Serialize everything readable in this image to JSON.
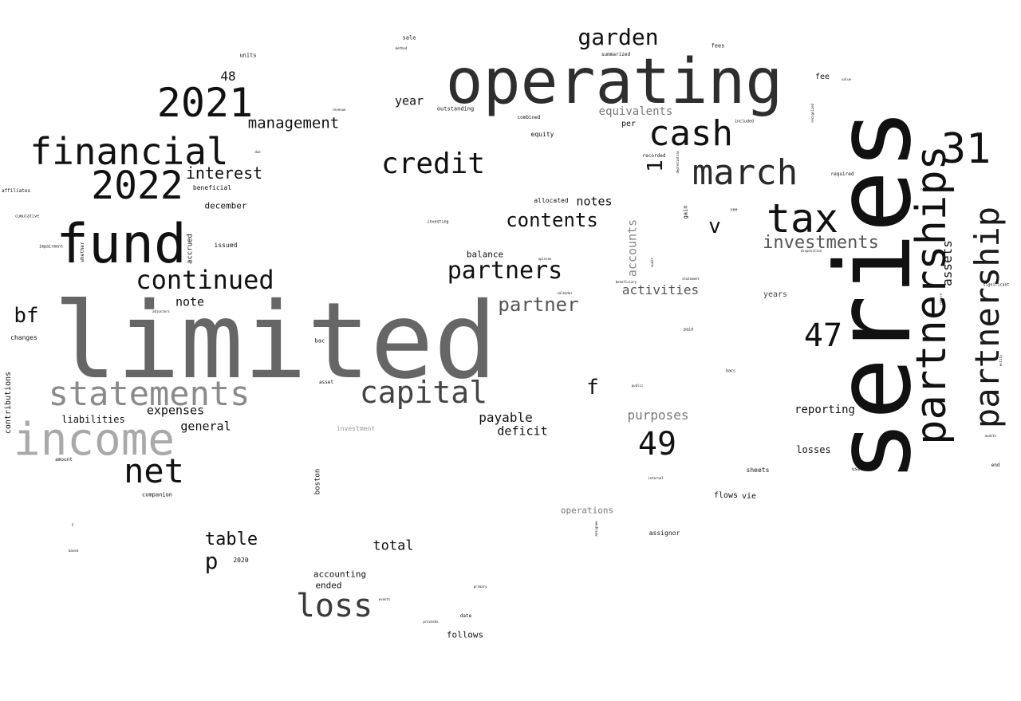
{
  "words": [
    {
      "text": "series",
      "color": "#111111",
      "rotated": true
    },
    {
      "text": "limited",
      "color": "#666666",
      "rotated": false
    },
    {
      "text": "operating",
      "color": "#2e2e2e",
      "rotated": false
    },
    {
      "text": "partnerships",
      "color": "#111111",
      "rotated": true
    },
    {
      "text": "income",
      "color": "#a9a9a9",
      "rotated": false
    },
    {
      "text": "fund",
      "color": "#111111",
      "rotated": false
    },
    {
      "text": "partnership",
      "color": "#1a1a1a",
      "rotated": true
    },
    {
      "text": "financial",
      "color": "#111111",
      "rotated": false
    },
    {
      "text": "statements",
      "color": "#8a8a8a",
      "rotated": false
    },
    {
      "text": "tax",
      "color": "#111111",
      "rotated": false
    },
    {
      "text": "2021",
      "color": "#111111",
      "rotated": false
    },
    {
      "text": "2022",
      "color": "#111111",
      "rotated": false
    },
    {
      "text": "march",
      "color": "#2a2a2a",
      "rotated": false
    },
    {
      "text": "cash",
      "color": "#111111",
      "rotated": false
    },
    {
      "text": "31",
      "color": "#111111",
      "rotated": false
    },
    {
      "text": "capital",
      "color": "#444444",
      "rotated": false
    },
    {
      "text": "net",
      "color": "#111111",
      "rotated": false
    },
    {
      "text": "loss",
      "color": "#3a3a3a",
      "rotated": false
    },
    {
      "text": "credit",
      "color": "#111111",
      "rotated": false
    },
    {
      "text": "49",
      "color": "#111111",
      "rotated": false
    },
    {
      "text": "47",
      "color": "#111111",
      "rotated": false
    },
    {
      "text": "continued",
      "color": "#111111",
      "rotated": false
    },
    {
      "text": "partners",
      "color": "#111111",
      "rotated": false
    },
    {
      "text": "garden",
      "color": "#111111",
      "rotated": false
    },
    {
      "text": "contents",
      "color": "#111111",
      "rotated": false
    },
    {
      "text": "investments",
      "color": "#555555",
      "rotated": false
    },
    {
      "text": "partner",
      "color": "#555555",
      "rotated": false
    },
    {
      "text": "interest",
      "color": "#111111",
      "rotated": false
    },
    {
      "text": "management",
      "color": "#111111",
      "rotated": false
    },
    {
      "text": "table",
      "color": "#111111",
      "rotated": false
    },
    {
      "text": "bf",
      "color": "#111111",
      "rotated": false
    },
    {
      "text": "p",
      "color": "#111111",
      "rotated": false
    },
    {
      "text": "v",
      "color": "#111111",
      "rotated": false
    },
    {
      "text": "f",
      "color": "#111111",
      "rotated": false
    },
    {
      "text": "1",
      "color": "#111111",
      "rotated": true
    },
    {
      "text": "total",
      "color": "#111111",
      "rotated": false
    },
    {
      "text": "assets",
      "color": "#111111",
      "rotated": true
    },
    {
      "text": "purposes",
      "color": "#777777",
      "rotated": false
    },
    {
      "text": "activities",
      "color": "#555555",
      "rotated": false
    },
    {
      "text": "accounts",
      "color": "#888888",
      "rotated": true
    },
    {
      "text": "payable",
      "color": "#111111",
      "rotated": false
    },
    {
      "text": "deficit",
      "color": "#111111",
      "rotated": false
    },
    {
      "text": "expenses",
      "color": "#111111",
      "rotated": false
    },
    {
      "text": "general",
      "color": "#111111",
      "rotated": false
    },
    {
      "text": "note",
      "color": "#111111",
      "rotated": false
    },
    {
      "text": "48",
      "color": "#111111",
      "rotated": false
    },
    {
      "text": "year",
      "color": "#111111",
      "rotated": false
    },
    {
      "text": "notes",
      "color": "#111111",
      "rotated": false
    },
    {
      "text": "reporting",
      "color": "#111111",
      "rotated": false
    },
    {
      "text": "equivalents",
      "color": "#777777",
      "rotated": false
    },
    {
      "text": "liabilities",
      "color": "#111111",
      "rotated": false
    },
    {
      "text": "operations",
      "color": "#777777",
      "rotated": false
    },
    {
      "text": "losses",
      "color": "#111111",
      "rotated": false
    },
    {
      "text": "balance",
      "color": "#111111",
      "rotated": false
    },
    {
      "text": "follows",
      "color": "#111111",
      "rotated": false
    },
    {
      "text": "accounting",
      "color": "#111111",
      "rotated": false
    },
    {
      "text": "ended",
      "color": "#111111",
      "rotated": false
    },
    {
      "text": "december",
      "color": "#111111",
      "rotated": false
    },
    {
      "text": "contributions",
      "color": "#111111",
      "rotated": true
    },
    {
      "text": "fee",
      "color": "#111111",
      "rotated": false
    },
    {
      "text": "vie",
      "color": "#111111",
      "rotated": false
    },
    {
      "text": "flows",
      "color": "#111111",
      "rotated": false
    },
    {
      "text": "years",
      "color": "#444444",
      "rotated": false
    },
    {
      "text": "per",
      "color": "#111111",
      "rotated": false
    },
    {
      "text": "accrued",
      "color": "#111111",
      "rotated": true
    },
    {
      "text": "boston",
      "color": "#111111",
      "rotated": true
    },
    {
      "text": "changes",
      "color": "#111111",
      "rotated": false
    },
    {
      "text": "issued",
      "color": "#111111",
      "rotated": false
    },
    {
      "text": "assignor",
      "color": "#111111",
      "rotated": false
    },
    {
      "text": "allocated",
      "color": "#111111",
      "rotated": false
    },
    {
      "text": "beneficial",
      "color": "#111111",
      "rotated": false
    },
    {
      "text": "investment",
      "color": "#999999",
      "rotated": false
    },
    {
      "text": "equity",
      "color": "#111111",
      "rotated": false
    },
    {
      "text": "sheets",
      "color": "#111111",
      "rotated": false
    },
    {
      "text": "outstanding",
      "color": "#111111",
      "rotated": false
    },
    {
      "text": "units",
      "color": "#111111",
      "rotated": false
    },
    {
      "text": "sale",
      "color": "#111111",
      "rotated": false
    },
    {
      "text": "fees",
      "color": "#111111",
      "rotated": false
    },
    {
      "text": "2020",
      "color": "#111111",
      "rotated": false
    },
    {
      "text": "companion",
      "color": "#111111",
      "rotated": false
    },
    {
      "text": "gain",
      "color": "#111111",
      "rotated": true
    },
    {
      "text": "summarized",
      "color": "#111111",
      "rotated": false
    },
    {
      "text": "combined",
      "color": "#111111",
      "rotated": false
    },
    {
      "text": "included",
      "color": "#111111",
      "rotated": false
    },
    {
      "text": "required",
      "color": "#111111",
      "rotated": false
    },
    {
      "text": "recorded",
      "color": "#111111",
      "rotated": false
    },
    {
      "text": "amount",
      "color": "#111111",
      "rotated": false
    },
    {
      "text": "affiliates",
      "color": "#111111",
      "rotated": false
    },
    {
      "text": "cumulative",
      "color": "#111111",
      "rotated": false
    },
    {
      "text": "impairment",
      "color": "#111111",
      "rotated": false
    },
    {
      "text": "whether",
      "color": "#111111",
      "rotated": true
    },
    {
      "text": "used",
      "color": "#111111",
      "rotated": false
    },
    {
      "text": "end",
      "color": "#111111",
      "rotated": false
    },
    {
      "text": "bac",
      "color": "#111111",
      "rotated": false
    },
    {
      "text": "asset",
      "color": "#111111",
      "rotated": false
    },
    {
      "text": "paid",
      "color": "#111111",
      "rotated": false
    },
    {
      "text": "bacs",
      "color": "#111111",
      "rotated": false
    },
    {
      "text": "investing",
      "color": "#111111",
      "rotated": false
    },
    {
      "text": "see",
      "color": "#111111",
      "rotated": false
    },
    {
      "text": "significant",
      "color": "#111111",
      "rotated": false
    },
    {
      "text": "disposition",
      "color": "#111111",
      "rotated": false
    },
    {
      "text": "date",
      "color": "#111111",
      "rotated": false
    },
    {
      "text": "depreciation",
      "color": "#111111",
      "rotated": true
    },
    {
      "text": "internal",
      "color": "#111111",
      "rotated": false
    },
    {
      "text": "public",
      "color": "#111111",
      "rotated": false
    },
    {
      "text": "primary",
      "color": "#111111",
      "rotated": false
    },
    {
      "text": "events",
      "color": "#111111",
      "rotated": false
    },
    {
      "text": "proceeds",
      "color": "#111111",
      "rotated": false
    },
    {
      "text": "method",
      "color": "#111111",
      "rotated": false
    },
    {
      "text": "revenue",
      "color": "#111111",
      "rotated": false
    },
    {
      "text": "due",
      "color": "#111111",
      "rotated": false
    },
    {
      "text": "adjusters",
      "color": "#111111",
      "rotated": false
    },
    {
      "text": "based",
      "color": "#111111",
      "rotated": false
    },
    {
      "text": "c",
      "color": "#111111",
      "rotated": false
    },
    {
      "text": "value",
      "color": "#111111",
      "rotated": false
    },
    {
      "text": "recognized",
      "color": "#111111",
      "rotated": true
    },
    {
      "text": "related",
      "color": "#111111",
      "rotated": false
    },
    {
      "text": "return",
      "color": "#111111",
      "rotated": true
    },
    {
      "text": "entity",
      "color": "#111111",
      "rotated": true
    },
    {
      "text": "audits",
      "color": "#111111",
      "rotated": false
    },
    {
      "text": "beneficiary",
      "color": "#111111",
      "rotated": false
    },
    {
      "text": "statement",
      "color": "#111111",
      "rotated": false
    },
    {
      "text": "calendar",
      "color": "#111111",
      "rotated": false
    },
    {
      "text": "opinion",
      "color": "#111111",
      "rotated": false
    },
    {
      "text": "audit",
      "color": "#111111",
      "rotated": true
    },
    {
      "text": "assignee",
      "color": "#111111",
      "rotated": true
    }
  ]
}
